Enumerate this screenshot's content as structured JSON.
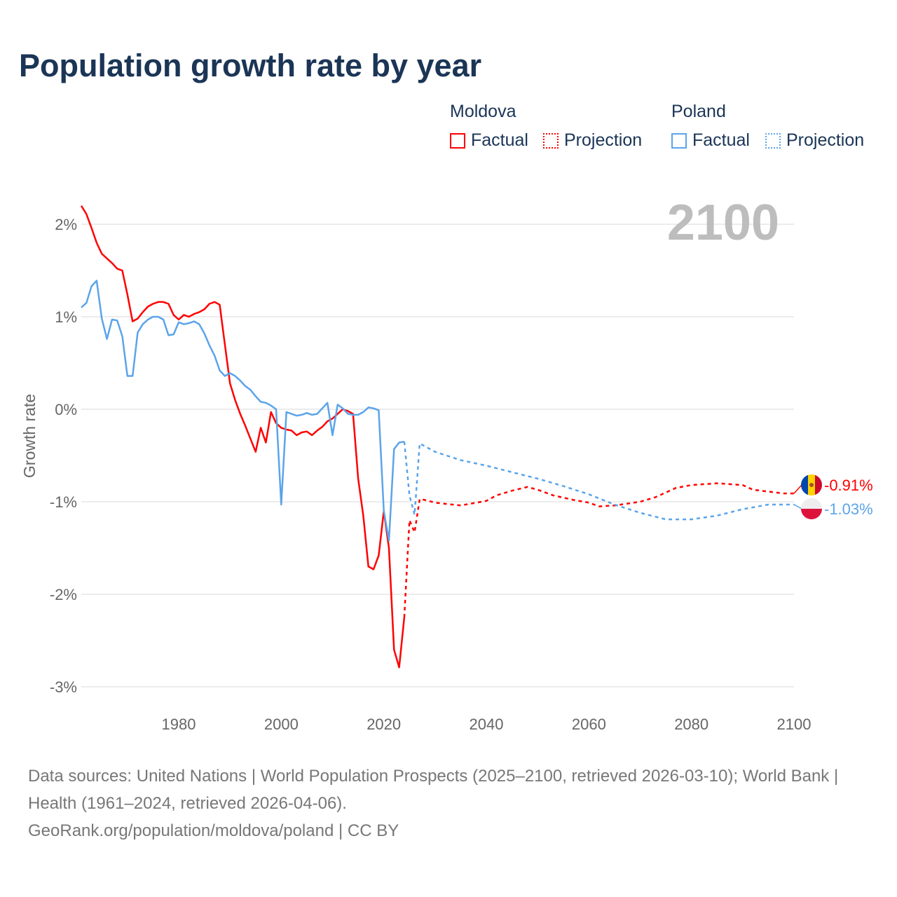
{
  "chart_data": {
    "type": "line",
    "title": "Population growth rate by year",
    "ylabel": "Growth rate",
    "xlabel": "",
    "xlim": [
      1961,
      2100
    ],
    "ylim": [
      -3.2,
      2.2
    ],
    "x_ticks": [
      1980,
      2000,
      2020,
      2040,
      2060,
      2080,
      2100
    ],
    "x_tick_labels": [
      "1980",
      "2000",
      "2020",
      "2040",
      "2060",
      "2080",
      "2100"
    ],
    "y_ticks": [
      2,
      1,
      0,
      -1,
      -2,
      -3
    ],
    "y_tick_labels": [
      "2%",
      "1%",
      "0%",
      "-1%",
      "-2%",
      "-3%"
    ],
    "grid": true,
    "year_watermark": "2100",
    "legend": {
      "placement": "top-right",
      "groups": [
        {
          "name": "Moldova",
          "factual": "Factual",
          "projection": "Projection",
          "color": "#ff0000"
        },
        {
          "name": "Poland",
          "factual": "Factual",
          "projection": "Projection",
          "color": "#5ba4ea"
        }
      ]
    },
    "series": [
      {
        "name": "Moldova Factual",
        "color": "#ff0000",
        "style": "solid",
        "x": [
          1961,
          1962,
          1963,
          1964,
          1965,
          1966,
          1967,
          1968,
          1969,
          1970,
          1971,
          1972,
          1973,
          1974,
          1975,
          1976,
          1977,
          1978,
          1979,
          1980,
          1981,
          1982,
          1983,
          1984,
          1985,
          1986,
          1987,
          1988,
          1989,
          1990,
          1991,
          1992,
          1993,
          1994,
          1995,
          1996,
          1997,
          1998,
          1999,
          2000,
          2001,
          2002,
          2003,
          2004,
          2005,
          2006,
          2007,
          2008,
          2009,
          2010,
          2011,
          2012,
          2013,
          2014,
          2015,
          2016,
          2017,
          2018,
          2019,
          2020,
          2021,
          2022,
          2023,
          2024
        ],
        "y": [
          2.2,
          2.11,
          1.96,
          1.8,
          1.68,
          1.63,
          1.58,
          1.52,
          1.5,
          1.24,
          0.95,
          0.98,
          1.05,
          1.11,
          1.14,
          1.16,
          1.16,
          1.14,
          1.02,
          0.97,
          1.02,
          1.0,
          1.03,
          1.05,
          1.08,
          1.14,
          1.16,
          1.13,
          0.7,
          0.28,
          0.1,
          -0.05,
          -0.18,
          -0.32,
          -0.46,
          -0.2,
          -0.36,
          -0.03,
          -0.15,
          -0.2,
          -0.22,
          -0.23,
          -0.28,
          -0.25,
          -0.24,
          -0.28,
          -0.23,
          -0.19,
          -0.13,
          -0.1,
          -0.05,
          0.0,
          -0.02,
          -0.05,
          -0.75,
          -1.15,
          -1.7,
          -1.73,
          -1.58,
          -1.1,
          -1.5,
          -2.6,
          -2.79,
          -2.25
        ]
      },
      {
        "name": "Moldova Projection",
        "color": "#ff0000",
        "style": "dotted",
        "x": [
          2024,
          2025,
          2026,
          2027,
          2028,
          2030,
          2035,
          2040,
          2042,
          2045,
          2048,
          2050,
          2053,
          2057,
          2060,
          2062,
          2065,
          2070,
          2073,
          2077,
          2080,
          2085,
          2090,
          2092,
          2095,
          2098,
          2100
        ],
        "y": [
          -2.25,
          -1.2,
          -1.33,
          -0.97,
          -0.98,
          -1.01,
          -1.04,
          -0.99,
          -0.93,
          -0.88,
          -0.84,
          -0.87,
          -0.93,
          -0.98,
          -1.01,
          -1.05,
          -1.04,
          -1.0,
          -0.95,
          -0.85,
          -0.82,
          -0.8,
          -0.82,
          -0.87,
          -0.89,
          -0.91,
          -0.91
        ]
      },
      {
        "name": "Poland Factual",
        "color": "#5ba4ea",
        "style": "solid",
        "x": [
          1961,
          1962,
          1963,
          1964,
          1965,
          1966,
          1967,
          1968,
          1969,
          1970,
          1971,
          1972,
          1973,
          1974,
          1975,
          1976,
          1977,
          1978,
          1979,
          1980,
          1981,
          1982,
          1983,
          1984,
          1985,
          1986,
          1987,
          1988,
          1989,
          1990,
          1991,
          1992,
          1993,
          1994,
          1995,
          1996,
          1997,
          1998,
          1999,
          2000,
          2001,
          2002,
          2003,
          2004,
          2005,
          2006,
          2007,
          2008,
          2009,
          2010,
          2011,
          2012,
          2013,
          2014,
          2015,
          2016,
          2017,
          2018,
          2019,
          2020,
          2021,
          2022,
          2023,
          2024
        ],
        "y": [
          1.1,
          1.15,
          1.33,
          1.39,
          0.98,
          0.76,
          0.97,
          0.96,
          0.79,
          0.36,
          0.36,
          0.83,
          0.92,
          0.97,
          1.0,
          1.0,
          0.97,
          0.8,
          0.81,
          0.94,
          0.92,
          0.93,
          0.95,
          0.92,
          0.82,
          0.69,
          0.58,
          0.42,
          0.36,
          0.39,
          0.36,
          0.31,
          0.25,
          0.21,
          0.14,
          0.08,
          0.07,
          0.04,
          0.0,
          -1.03,
          -0.03,
          -0.05,
          -0.07,
          -0.06,
          -0.04,
          -0.06,
          -0.05,
          0.01,
          0.07,
          -0.28,
          0.05,
          0.01,
          -0.05,
          -0.06,
          -0.06,
          -0.03,
          0.02,
          0.01,
          -0.01,
          -1.1,
          -1.42,
          -0.43,
          -0.36,
          -0.35
        ]
      },
      {
        "name": "Poland Projection",
        "color": "#5ba4ea",
        "style": "dotted",
        "x": [
          2024,
          2025,
          2026,
          2027,
          2030,
          2035,
          2040,
          2045,
          2050,
          2055,
          2060,
          2065,
          2070,
          2075,
          2080,
          2085,
          2090,
          2095,
          2100
        ],
        "y": [
          -0.35,
          -0.93,
          -1.14,
          -0.37,
          -0.46,
          -0.55,
          -0.61,
          -0.68,
          -0.75,
          -0.83,
          -0.92,
          -1.03,
          -1.12,
          -1.19,
          -1.19,
          -1.15,
          -1.08,
          -1.03,
          -1.03
        ]
      }
    ],
    "end_labels": [
      {
        "country": "Moldova",
        "value": -0.91,
        "text": "-0.91%",
        "color": "#ff0000",
        "flag": "moldova-flag"
      },
      {
        "country": "Poland",
        "value": -1.03,
        "text": "-1.03%",
        "color": "#5ba4ea",
        "flag": "poland-flag"
      }
    ],
    "source_lines": [
      "Data sources: United Nations | World Population Prospects (2025–2100, retrieved 2026-03-10); World Bank | Health (1961–2024, retrieved 2026-04-06).",
      "GeoRank.org/population/moldova/poland | CC BY"
    ]
  }
}
